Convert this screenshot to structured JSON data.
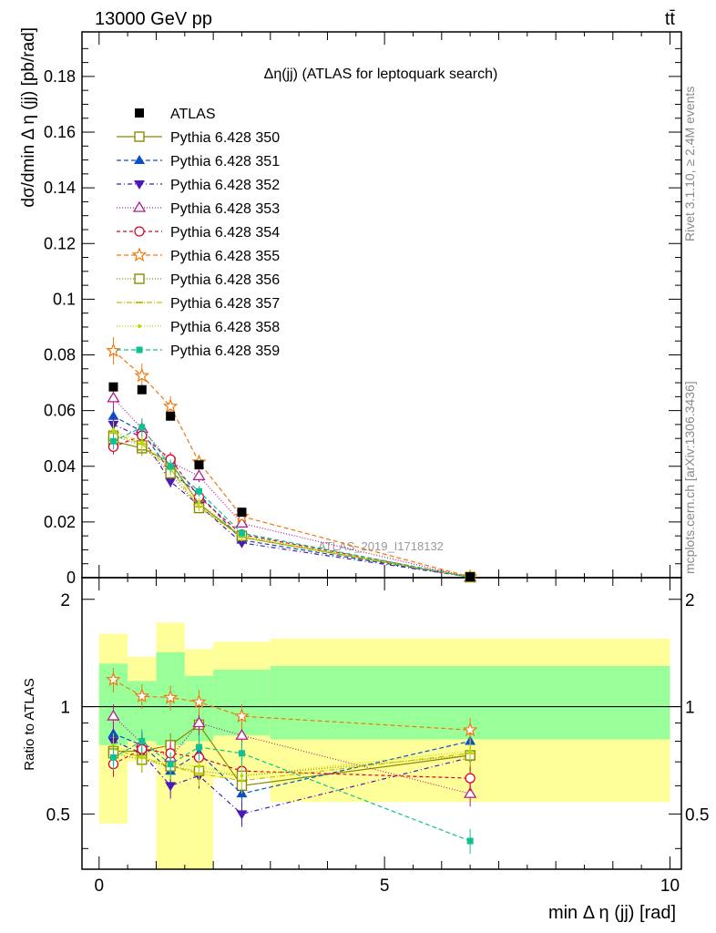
{
  "header": {
    "left": "13000 GeV pp",
    "right": "tt̄"
  },
  "side_labels": {
    "rivet": "Rivet 3.1.10, ≥ 2.4M events",
    "mcplots": "mcplots.cern.ch [arXiv:1306.3436]"
  },
  "watermark": "ATLAS_2019_I1718132",
  "chart_data": {
    "type": "scatter",
    "title": "Δη(jj) (ATLAS for leptoquark search)",
    "xlabel": "min Δ η (jj) [rad]",
    "ylabel": "dσ/dmin Δ η (jj) [pb/rad]",
    "ratio_ylabel": "Ratio to ATLAS",
    "xlim": [
      -0.3,
      10.2
    ],
    "ylim": [
      0,
      0.196
    ],
    "ratio_ylim": [
      0.35,
      2.3
    ],
    "x_ticks": [
      "0",
      "5",
      "10"
    ],
    "y_ticks": [
      "0",
      "0.02",
      "0.04",
      "0.06",
      "0.08",
      "0.1",
      "0.12",
      "0.14",
      "0.16",
      "0.18"
    ],
    "ratio_y_ticks": [
      "0.5",
      "1",
      "2"
    ],
    "legend_position": "top-left",
    "x": [
      0.25,
      0.75,
      1.25,
      1.75,
      2.5,
      6.5
    ],
    "bins": [
      [
        0,
        0.5
      ],
      [
        0.5,
        1.0
      ],
      [
        1.0,
        1.5
      ],
      [
        1.5,
        2.0
      ],
      [
        2.0,
        3.0
      ],
      [
        3.0,
        10.0
      ]
    ],
    "data": {
      "name": "ATLAS",
      "values": [
        0.0685,
        0.0675,
        0.058,
        0.0405,
        0.0235,
        0.0003
      ],
      "band_inner": [
        [
          0.78,
          1.32
        ],
        [
          0.8,
          1.18
        ],
        [
          0.78,
          1.42
        ],
        [
          0.8,
          1.22
        ],
        [
          0.83,
          1.27
        ],
        [
          0.81,
          1.3
        ]
      ],
      "band_outer": [
        [
          0.47,
          1.6
        ],
        [
          0.7,
          1.38
        ],
        [
          0.35,
          1.72
        ],
        [
          0.35,
          1.45
        ],
        [
          0.63,
          1.52
        ],
        [
          0.54,
          1.55
        ]
      ]
    },
    "series": [
      {
        "name": "Pythia 6.428 350",
        "color": "#8b8b00",
        "marker": "square-open",
        "dash": "",
        "values": [
          0.049,
          0.0465,
          0.0415,
          0.0265,
          0.0145,
          0.0002
        ],
        "ratio": [
          0.75,
          0.75,
          0.78,
          0.89,
          0.6,
          0.73
        ]
      },
      {
        "name": "Pythia 6.428 351",
        "color": "#0a50c8",
        "marker": "triangle-up",
        "dash": "5,3",
        "values": [
          0.058,
          0.0525,
          0.038,
          0.03,
          0.0135,
          0.0002
        ],
        "ratio": [
          0.84,
          0.78,
          0.66,
          0.74,
          0.57,
          0.8
        ]
      },
      {
        "name": "Pythia 6.428 352",
        "color": "#4b1ab5",
        "marker": "triangle-down",
        "dash": "5,3,1,3",
        "values": [
          0.055,
          0.0505,
          0.0345,
          0.026,
          0.0125,
          0.0002
        ],
        "ratio": [
          0.8,
          0.74,
          0.6,
          0.64,
          0.5,
          0.72
        ]
      },
      {
        "name": "Pythia 6.428 353",
        "color": "#b01e8c",
        "marker": "triangle-up-open",
        "dash": "1,2",
        "values": [
          0.0645,
          0.0535,
          0.0415,
          0.0365,
          0.0195,
          0.0001
        ],
        "ratio": [
          0.94,
          0.79,
          0.72,
          0.9,
          0.83,
          0.57
        ]
      },
      {
        "name": "Pythia 6.428 354",
        "color": "#e0002a",
        "marker": "circle-open",
        "dash": "4,3",
        "values": [
          0.047,
          0.051,
          0.0425,
          0.029,
          0.0155,
          0.0002
        ],
        "ratio": [
          0.69,
          0.76,
          0.74,
          0.72,
          0.66,
          0.63
        ]
      },
      {
        "name": "Pythia 6.428 355",
        "color": "#f07810",
        "marker": "star-open",
        "dash": "5,3",
        "values": [
          0.0815,
          0.0725,
          0.0615,
          0.0415,
          0.022,
          0.0003
        ],
        "ratio": [
          1.19,
          1.07,
          1.06,
          1.03,
          0.94,
          0.86
        ]
      },
      {
        "name": "Pythia 6.428 356",
        "color": "#8b8b00",
        "marker": "square-open",
        "dash": "1,2",
        "values": [
          0.051,
          0.0475,
          0.0375,
          0.025,
          0.015,
          0.0002
        ],
        "ratio": [
          0.74,
          0.71,
          0.68,
          0.66,
          0.64,
          0.73
        ]
      },
      {
        "name": "Pythia 6.428 357",
        "color": "#c8c000",
        "marker": "dash-marker",
        "dash": "6,2,1,2",
        "values": [
          0.052,
          0.048,
          0.039,
          0.0255,
          0.0145,
          0.0002
        ],
        "ratio": [
          0.76,
          0.72,
          0.68,
          0.65,
          0.62,
          0.74
        ]
      },
      {
        "name": "Pythia 6.428 358",
        "color": "#b4e000",
        "marker": "dot",
        "dash": "1,2",
        "values": [
          0.053,
          0.0485,
          0.04,
          0.027,
          0.015,
          0.0002
        ],
        "ratio": [
          0.78,
          0.72,
          0.69,
          0.68,
          0.64,
          0.75
        ]
      },
      {
        "name": "Pythia 6.428 359",
        "color": "#10c090",
        "marker": "square-filled",
        "dash": "5,3",
        "values": [
          0.049,
          0.054,
          0.04,
          0.031,
          0.016,
          0.0001
        ],
        "ratio": [
          0.72,
          0.8,
          0.69,
          0.77,
          0.74,
          0.42
        ]
      }
    ]
  }
}
